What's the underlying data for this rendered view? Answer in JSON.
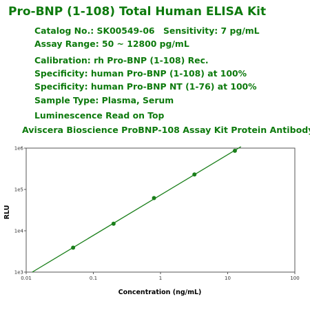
{
  "kit": {
    "title": "Pro-BNP (1-108) Total Human ELISA Kit",
    "catalog": "Catalog No.: SK00549-06",
    "sensitivity": "Sensitivity: 7 pg/mL",
    "range": "Assay Range: 50 ~ 12800 pg/mL",
    "calibration": "Calibration: rh Pro-BNP (1-108) Rec.",
    "specificity_1": "Specificity: human Pro-BNP (1-108) at 100%",
    "specificity_2": "Specificity: human Pro-BNP NT (1-76) at 100%",
    "sample_type": "Sample Type: Plasma, Serum",
    "read_mode": "Luminescence Read on Top",
    "subtitle": "Aviscera Bioscience ProBNP-108 Assay Kit Protein Antibody"
  },
  "colors": {
    "text": "#0d7a0d",
    "series": "#1a7f1a",
    "axis": "#555555"
  },
  "chart_data": {
    "type": "scatter",
    "title": "",
    "xlabel": "Concentration (ng/mL)",
    "ylabel": "RLU",
    "x_scale": "log",
    "y_scale": "log",
    "xlim": [
      0.01,
      100
    ],
    "ylim": [
      1000,
      1000000
    ],
    "x_ticks": [
      0.01,
      0.1,
      1,
      10,
      100
    ],
    "x_tick_labels": [
      "0.01",
      "0.1",
      "1",
      "10",
      "100"
    ],
    "y_ticks": [
      1000,
      10000,
      100000,
      1000000
    ],
    "y_tick_labels": [
      "1e3",
      "1e4",
      "1e5",
      "1e6"
    ],
    "grid": false,
    "series": [
      {
        "x": [
          0.05,
          0.2,
          0.8,
          3.2,
          12.8
        ],
        "y": [
          3900,
          14800,
          62000,
          230000,
          860000
        ],
        "fit": "linear-log-log"
      }
    ]
  }
}
